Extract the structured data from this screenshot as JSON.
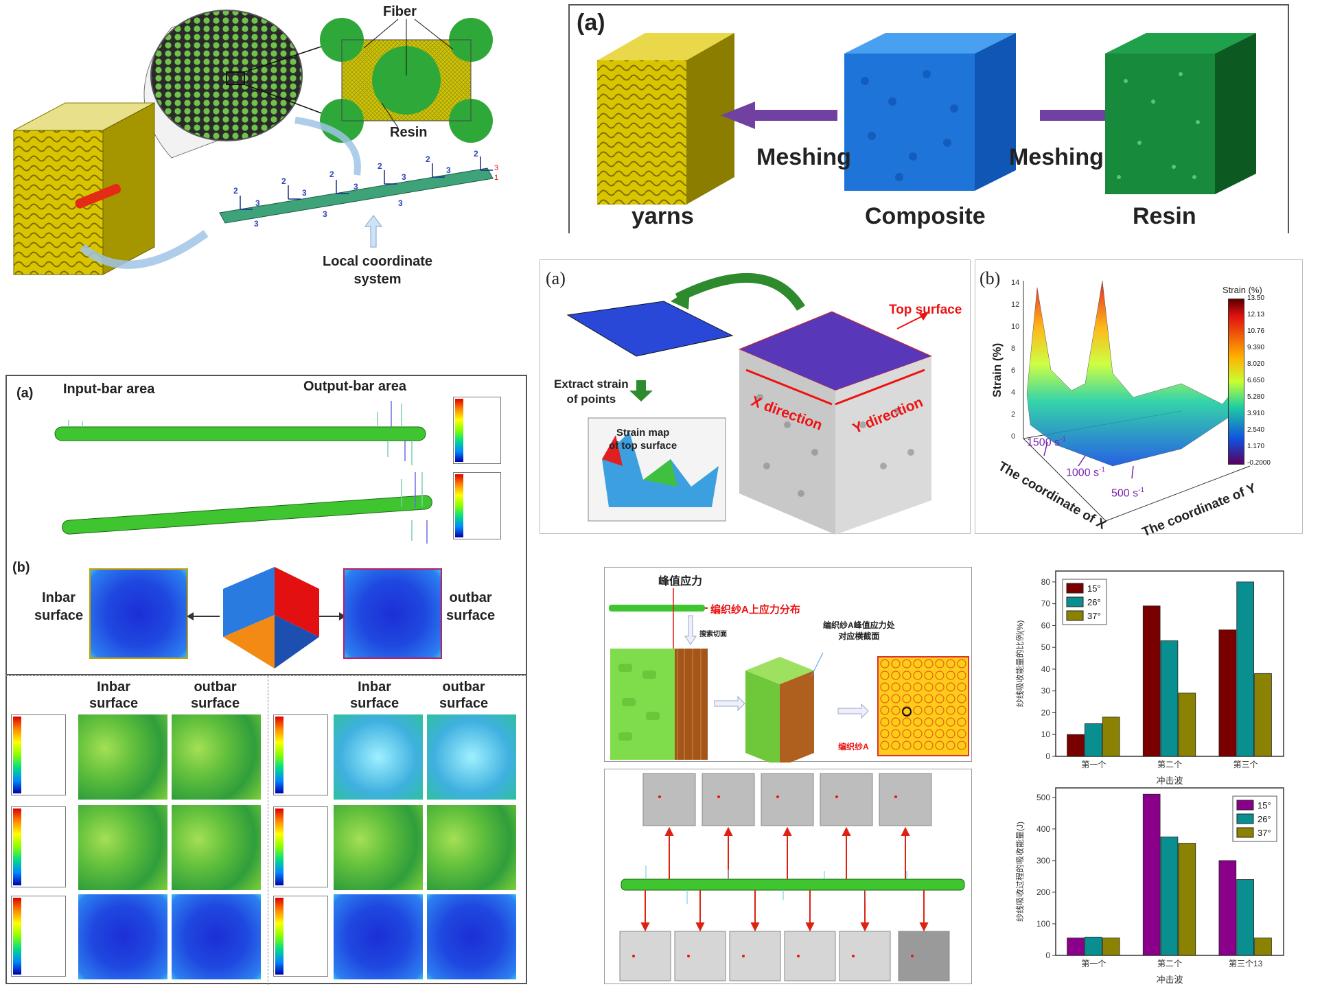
{
  "fig_tl": {
    "fiber": "Fiber",
    "resin": "Resin",
    "local_coord": [
      "Local coordinate",
      "system"
    ]
  },
  "fig_tr": {
    "tag": "(a)",
    "meshing_left": "Meshing",
    "meshing_right": "Meshing",
    "yarns": "yarns",
    "composite": "Composite",
    "resin": "Resin"
  },
  "fig_ml": {
    "tag_a": "(a)",
    "input_bar": "Input-bar area",
    "output_bar": "Output-bar area",
    "tag_b": "(b)",
    "inbar": [
      "Inbar",
      "surface"
    ],
    "outbar": [
      "outbar",
      "surface"
    ],
    "inbar2": [
      "Inbar",
      "surface"
    ],
    "outbar2": [
      "outbar",
      "surface"
    ],
    "inbar3": [
      "Inbar",
      "surface"
    ],
    "outbar3": [
      "outbar",
      "surface"
    ]
  },
  "fig_mr_a": {
    "tag": "(a)",
    "top_surface": "Top surface",
    "extract": [
      "Extract strain",
      "of points"
    ],
    "strain_map": [
      "Strain map",
      "of top surface"
    ],
    "x_dir": "X direction",
    "y_dir": "Y direction"
  },
  "fig_mr_b": {
    "tag": "(b)",
    "zlabel": "Strain (%)",
    "xlabel": "The coordinate of X",
    "ylabel": "The coordinate of Y",
    "colorbar_title": "Strain (%)",
    "colorbar_ticks": [
      "13.50",
      "12.13",
      "10.76",
      "9.390",
      "8.020",
      "6.650",
      "5.280",
      "3.910",
      "2.540",
      "1.170",
      "-0.2000"
    ],
    "z_ticks": [
      "14",
      "12",
      "10",
      "8",
      "6",
      "4",
      "2",
      "0"
    ],
    "rate_1500": "1500 s",
    "rate_1000": "1000 s",
    "rate_500": "500 s",
    "sup": "-1"
  },
  "fig_bm": {
    "peak_stress": "峰值应力",
    "dist": "编织纱A上应力分布",
    "find": "搜索切面",
    "peak_pos": [
      "编织纱A峰值应力处",
      "对应横截面"
    ],
    "yarn_a": "编织纱A"
  },
  "chart_data": [
    {
      "type": "bar",
      "categories": [
        "第一个",
        "第二个",
        "第三个"
      ],
      "series": [
        {
          "name": "15°",
          "values": [
            10,
            69,
            58
          ]
        },
        {
          "name": "26°",
          "values": [
            15,
            53,
            80
          ]
        },
        {
          "name": "37°",
          "values": [
            18,
            29,
            38
          ]
        }
      ],
      "xlabel": "",
      "ylabel": "纱线吸收能量的比例(%)",
      "ylim": [
        0,
        85
      ],
      "yticks": [
        0,
        10,
        20,
        30,
        40,
        50,
        60,
        70,
        80
      ],
      "legend": "top-left",
      "colors": [
        "#7a0000",
        "#0a8f90",
        "#8a8200"
      ]
    },
    {
      "type": "bar",
      "categories": [
        "第一个",
        "第二个",
        "第三个13"
      ],
      "series": [
        {
          "name": "15°",
          "values": [
            55,
            510,
            300
          ]
        },
        {
          "name": "26°",
          "values": [
            58,
            375,
            240
          ]
        },
        {
          "name": "37°",
          "values": [
            55,
            355,
            55
          ]
        }
      ],
      "title": "冲击波",
      "xlabel": "冲击波",
      "ylabel": "纱线吸收过程的吸收能量(J)",
      "ylim": [
        0,
        530
      ],
      "yticks": [
        0,
        100,
        200,
        300,
        400,
        500
      ],
      "legend": "top-right",
      "colors": [
        "#8b008b",
        "#0a8f90",
        "#8a8200"
      ]
    }
  ]
}
